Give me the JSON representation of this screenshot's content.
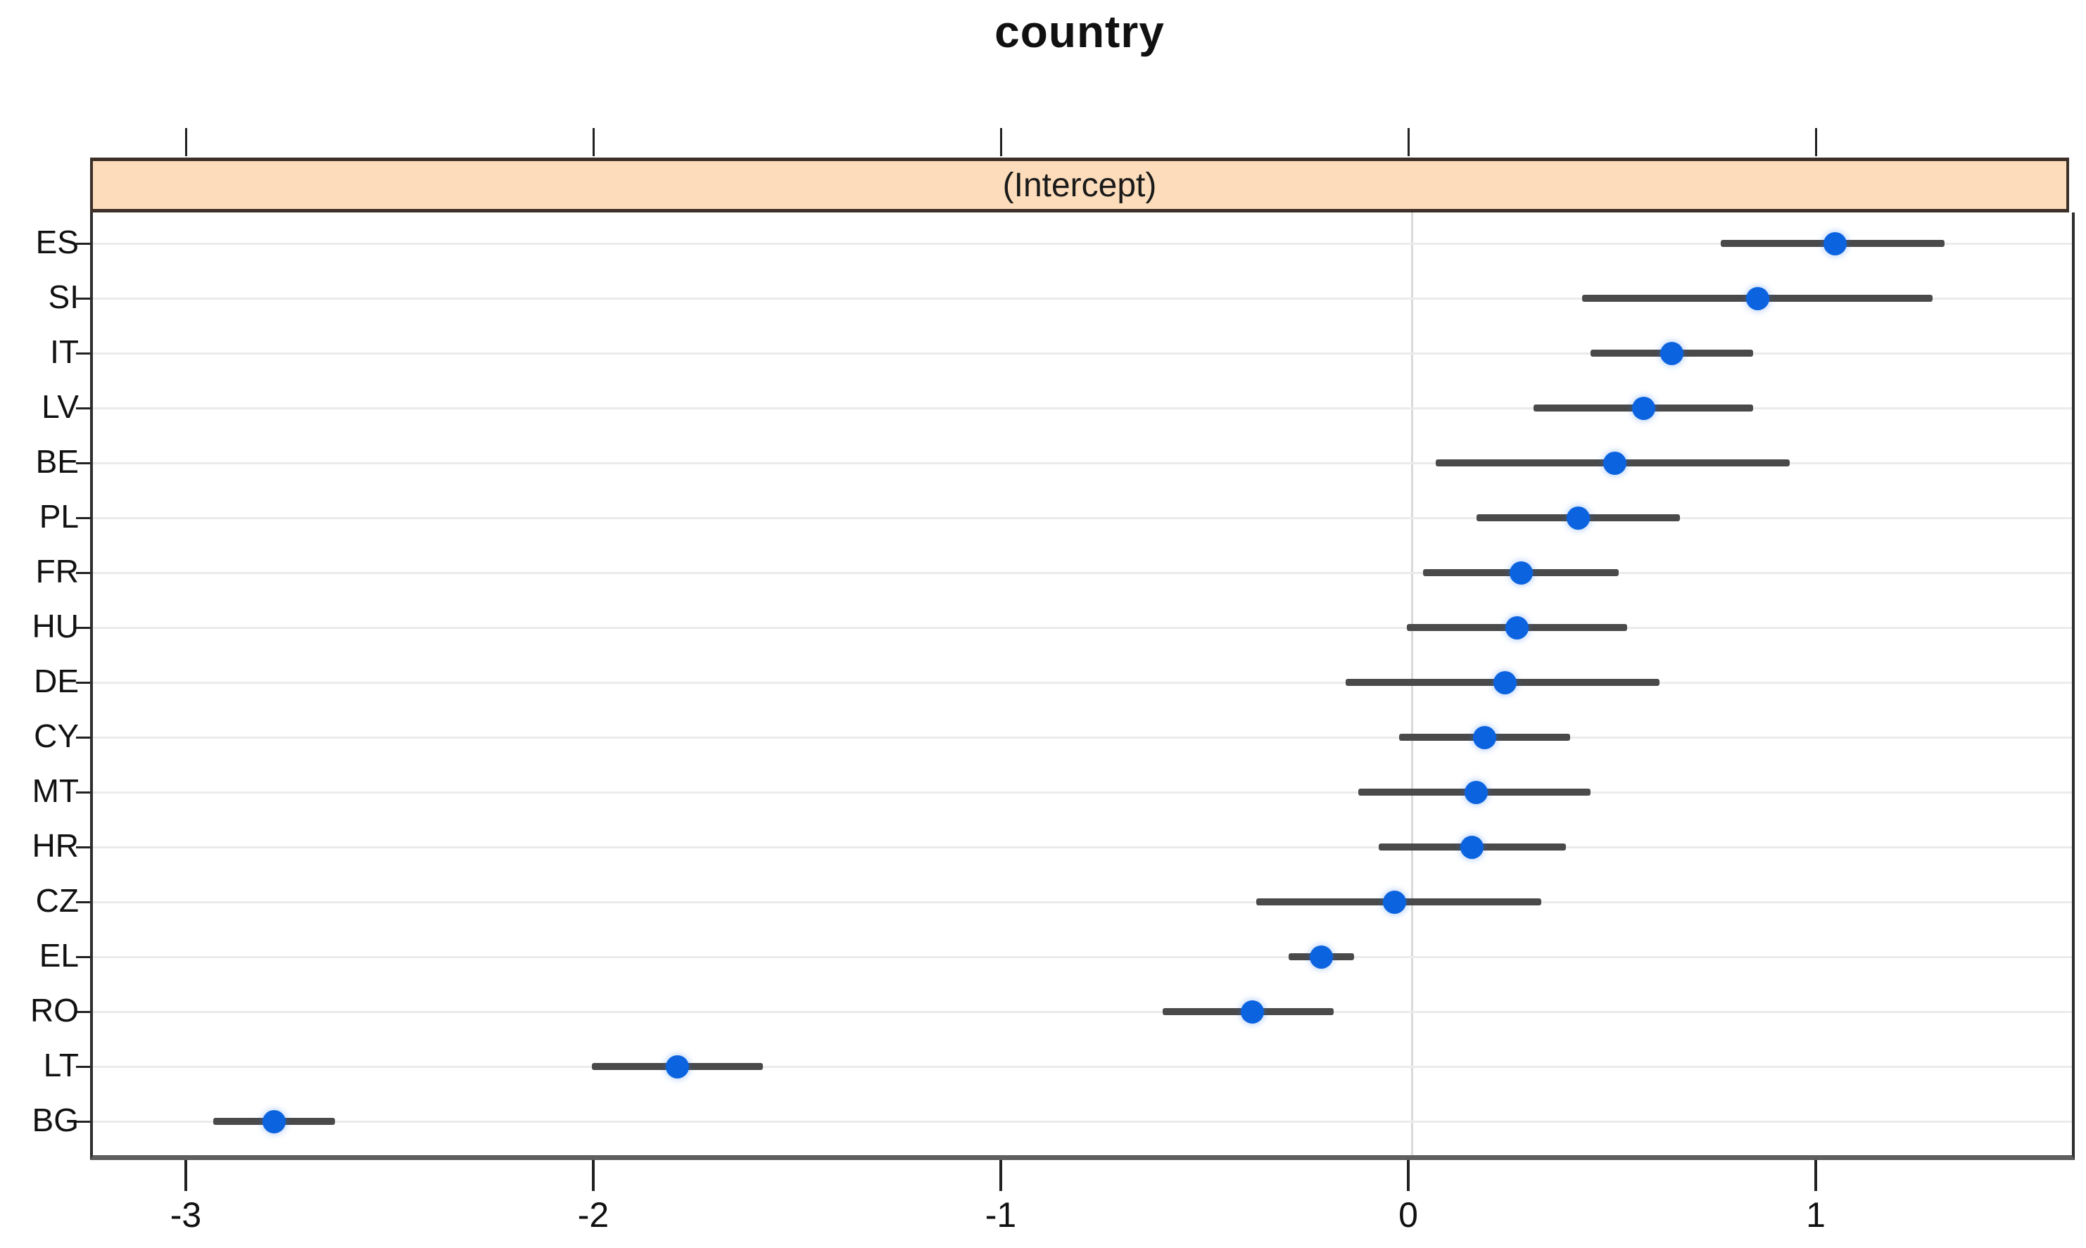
{
  "figure": {
    "title": "country",
    "panel_label": "(Intercept)"
  },
  "chart_data": {
    "type": "scatter",
    "subtype": "dotplot-with-intervals",
    "title": "country",
    "panel": "(Intercept)",
    "xlabel": "",
    "ylabel": "",
    "xlim": [
      -3.24,
      1.63
    ],
    "x_ticks": [
      -3,
      -2,
      -1,
      0,
      1
    ],
    "grid": "horizontal-row-lines-and-zero-reference",
    "legend_position": "none",
    "marker": "filled-circle",
    "categories": [
      "ES",
      "SI",
      "IT",
      "LV",
      "BE",
      "PL",
      "FR",
      "HU",
      "DE",
      "CY",
      "MT",
      "HR",
      "CZ",
      "EL",
      "RO",
      "LT",
      "BG"
    ],
    "series": [
      {
        "name": "(Intercept)",
        "values": [
          1.04,
          0.85,
          0.64,
          0.57,
          0.5,
          0.41,
          0.27,
          0.26,
          0.23,
          0.18,
          0.16,
          0.15,
          -0.04,
          -0.22,
          -0.39,
          -1.8,
          -2.79
        ],
        "ci_low": [
          0.76,
          0.42,
          0.44,
          0.3,
          0.06,
          0.16,
          0.03,
          -0.01,
          -0.16,
          -0.03,
          -0.13,
          -0.08,
          -0.38,
          -0.3,
          -0.61,
          -2.01,
          -2.94
        ],
        "ci_high": [
          1.31,
          1.28,
          0.84,
          0.84,
          0.93,
          0.66,
          0.51,
          0.53,
          0.61,
          0.39,
          0.44,
          0.38,
          0.32,
          -0.14,
          -0.19,
          -1.59,
          -2.64
        ]
      }
    ],
    "colors": {
      "dot": "#0b63e0",
      "interval_line": "#4a4a4a",
      "strip_fill": "#fcdcba",
      "strip_border": "#3c3028",
      "grid": "#ebebeb",
      "zero_line": "#d9d9d9",
      "box_border": "#2e2e2e",
      "axis_line": "#5f5f5f",
      "text": "#111111",
      "background": "#ffffff"
    }
  }
}
